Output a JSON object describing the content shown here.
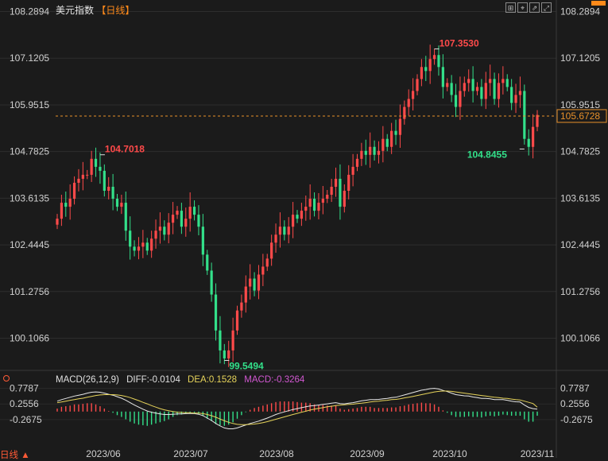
{
  "header": {
    "symbol": "美元指数",
    "period": "【日线】"
  },
  "toolbar": {
    "icons": [
      "expand-icon",
      "crosshair-icon",
      "indicator-icon",
      "fullscreen-icon"
    ]
  },
  "chart_data": {
    "type": "candlestick",
    "title": "美元指数",
    "period": "日线",
    "price_axis": {
      "ticks": [
        "108.2894",
        "107.1205",
        "105.9515",
        "104.7825",
        "103.6135",
        "102.4445",
        "101.2756",
        "100.1066"
      ],
      "range": [
        99.3,
        108.3
      ]
    },
    "last_price": "105.6728",
    "annotations": [
      {
        "label": "104.7018",
        "kind": "high",
        "color": "#ff4a4a"
      },
      {
        "label": "99.5494",
        "kind": "low",
        "color": "#33e08a"
      },
      {
        "label": "107.3530",
        "kind": "high",
        "color": "#ff4a4a"
      },
      {
        "label": "104.8455",
        "kind": "low",
        "color": "#33e08a"
      }
    ],
    "x_labels": [
      "2023/06",
      "2023/07",
      "2023/08",
      "2023/09",
      "2023/10",
      "2023/11"
    ],
    "closes": [
      103.1,
      103.5,
      103.4,
      103.6,
      104.0,
      104.1,
      104.2,
      104.2,
      104.6,
      104.4,
      104.3,
      103.8,
      103.9,
      103.6,
      103.4,
      103.5,
      102.8,
      102.4,
      102.3,
      102.4,
      102.5,
      102.3,
      102.6,
      102.8,
      102.9,
      102.7,
      103.0,
      103.2,
      103.3,
      102.9,
      103.1,
      103.4,
      103.2,
      102.9,
      102.2,
      101.8,
      101.2,
      100.3,
      99.8,
      99.6,
      99.8,
      100.3,
      100.8,
      101.0,
      101.4,
      101.6,
      101.3,
      101.7,
      101.9,
      102.1,
      102.5,
      102.7,
      102.9,
      102.7,
      102.9,
      103.2,
      103.1,
      103.3,
      103.4,
      103.6,
      103.3,
      103.5,
      103.6,
      103.7,
      103.9,
      104.1,
      103.4,
      103.8,
      104.2,
      104.4,
      104.6,
      104.8,
      104.7,
      104.9,
      104.7,
      104.8,
      105.1,
      104.9,
      105.3,
      105.2,
      105.6,
      105.9,
      106.1,
      106.3,
      106.6,
      106.9,
      106.8,
      107.1,
      107.2,
      106.9,
      106.4,
      106.5,
      106.2,
      105.9,
      106.3,
      106.5,
      106.6,
      106.3,
      106.4,
      106.1,
      106.5,
      106.6,
      106.1,
      106.5,
      106.6,
      106.4,
      106.0,
      106.2,
      106.3,
      105.1,
      104.9,
      105.4,
      105.7
    ]
  },
  "macd": {
    "params": "MACD(26,12,9)",
    "diff_label": "DIFF:-0.0104",
    "dea_label": "DEA:0.1528",
    "macd_label": "MACD:-0.3264",
    "ticks": [
      "0.7787",
      "0.2556",
      "-0.2675"
    ],
    "range": [
      -0.7,
      0.85
    ],
    "series": {
      "diff": [
        0.35,
        0.4,
        0.44,
        0.48,
        0.52,
        0.55,
        0.58,
        0.62,
        0.65,
        0.66,
        0.65,
        0.62,
        0.58,
        0.55,
        0.5,
        0.45,
        0.38,
        0.3,
        0.22,
        0.15,
        0.08,
        0.02,
        -0.02,
        -0.05,
        -0.08,
        -0.1,
        -0.1,
        -0.09,
        -0.08,
        -0.08,
        -0.07,
        -0.06,
        -0.07,
        -0.09,
        -0.14,
        -0.22,
        -0.3,
        -0.4,
        -0.48,
        -0.55,
        -0.58,
        -0.58,
        -0.55,
        -0.5,
        -0.45,
        -0.4,
        -0.36,
        -0.32,
        -0.27,
        -0.22,
        -0.16,
        -0.1,
        -0.05,
        -0.01,
        0.03,
        0.07,
        0.1,
        0.13,
        0.16,
        0.19,
        0.2,
        0.22,
        0.24,
        0.26,
        0.28,
        0.3,
        0.27,
        0.26,
        0.28,
        0.3,
        0.33,
        0.36,
        0.38,
        0.4,
        0.4,
        0.41,
        0.43,
        0.44,
        0.47,
        0.48,
        0.52,
        0.56,
        0.6,
        0.64,
        0.68,
        0.72,
        0.74,
        0.77,
        0.78,
        0.76,
        0.71,
        0.67,
        0.62,
        0.57,
        0.55,
        0.53,
        0.52,
        0.49,
        0.47,
        0.44,
        0.44,
        0.43,
        0.4,
        0.4,
        0.4,
        0.38,
        0.35,
        0.33,
        0.32,
        0.22,
        0.14,
        0.1,
        0.08
      ],
      "dea": [
        0.3,
        0.32,
        0.35,
        0.38,
        0.4,
        0.43,
        0.45,
        0.48,
        0.51,
        0.54,
        0.56,
        0.57,
        0.57,
        0.57,
        0.56,
        0.54,
        0.51,
        0.47,
        0.42,
        0.37,
        0.31,
        0.26,
        0.2,
        0.15,
        0.1,
        0.06,
        0.03,
        0.0,
        -0.02,
        -0.03,
        -0.04,
        -0.04,
        -0.05,
        -0.05,
        -0.07,
        -0.1,
        -0.14,
        -0.19,
        -0.25,
        -0.31,
        -0.36,
        -0.4,
        -0.43,
        -0.44,
        -0.44,
        -0.43,
        -0.42,
        -0.4,
        -0.37,
        -0.34,
        -0.3,
        -0.26,
        -0.22,
        -0.18,
        -0.14,
        -0.1,
        -0.06,
        -0.02,
        0.01,
        0.05,
        0.08,
        0.11,
        0.13,
        0.16,
        0.18,
        0.2,
        0.22,
        0.23,
        0.24,
        0.25,
        0.27,
        0.28,
        0.3,
        0.32,
        0.34,
        0.35,
        0.37,
        0.38,
        0.4,
        0.41,
        0.43,
        0.46,
        0.48,
        0.51,
        0.54,
        0.57,
        0.6,
        0.63,
        0.66,
        0.68,
        0.69,
        0.69,
        0.68,
        0.66,
        0.64,
        0.62,
        0.6,
        0.58,
        0.56,
        0.54,
        0.52,
        0.5,
        0.48,
        0.47,
        0.45,
        0.44,
        0.42,
        0.4,
        0.39,
        0.35,
        0.31,
        0.27,
        0.15
      ]
    }
  },
  "footer": {
    "period_switch": "日线 ▲"
  }
}
